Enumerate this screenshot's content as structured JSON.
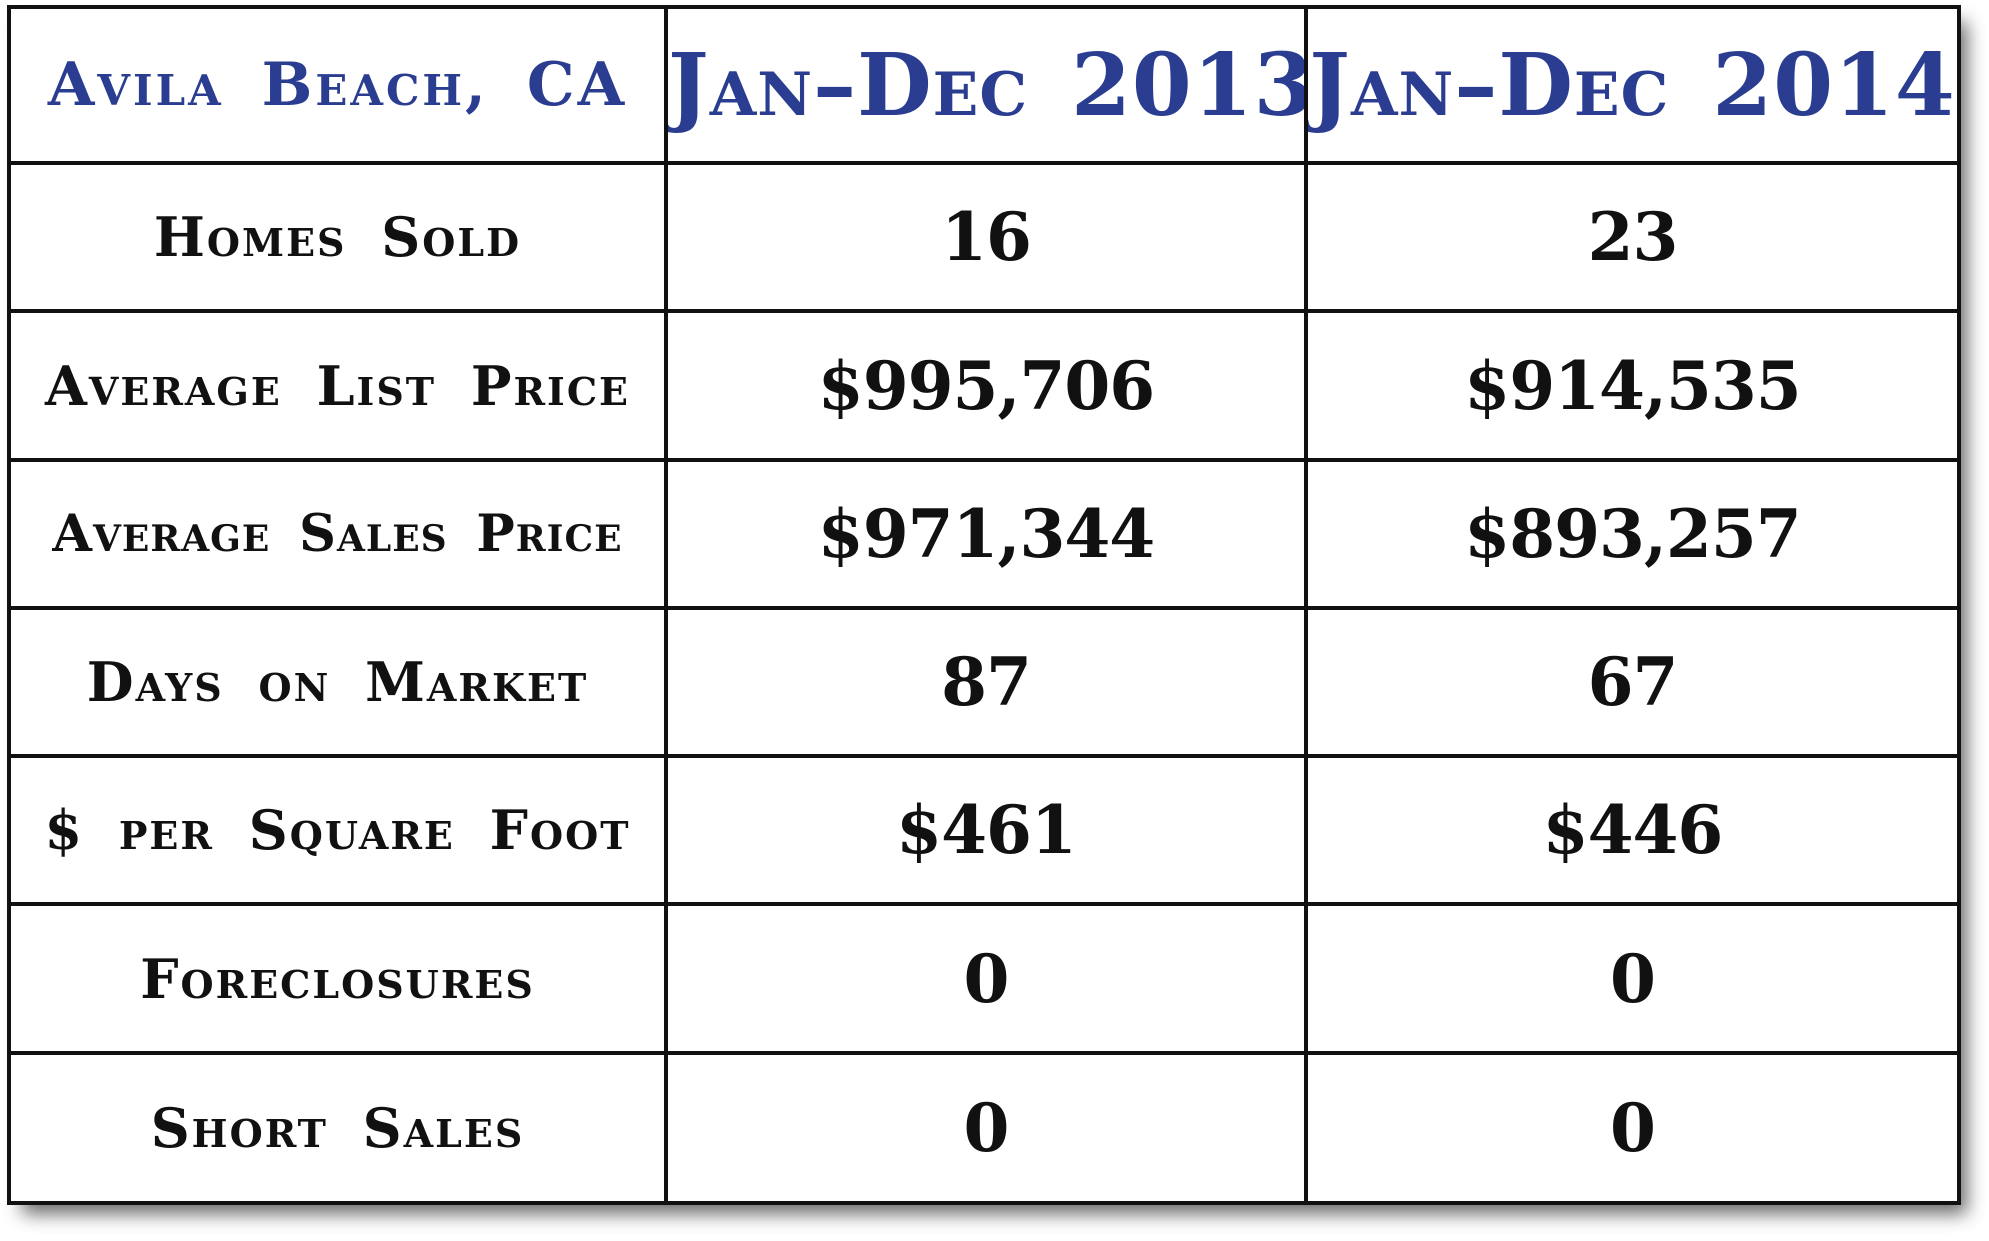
{
  "chart_data": {
    "type": "table",
    "title": "Avila Beach, CA",
    "columns": [
      "Jan–Dec 2013",
      "Jan–Dec 2014"
    ],
    "rows": [
      {
        "label": "Homes Sold",
        "values": [
          "16",
          "23"
        ]
      },
      {
        "label": "Average List Price",
        "values": [
          "$995,706",
          "$914,535"
        ]
      },
      {
        "label": "Average Sales Price",
        "values": [
          "$971,344",
          "$893,257"
        ]
      },
      {
        "label": "Days on Market",
        "values": [
          "87",
          "67"
        ]
      },
      {
        "label": "$ per Square Foot",
        "values": [
          "$461",
          "$446"
        ]
      },
      {
        "label": "Foreclosures",
        "values": [
          "0",
          "0"
        ]
      },
      {
        "label": "Short Sales",
        "values": [
          "0",
          "0"
        ]
      }
    ]
  },
  "colors": {
    "header_text": "#2a3d91",
    "body_text": "#111111",
    "border": "#111111"
  }
}
